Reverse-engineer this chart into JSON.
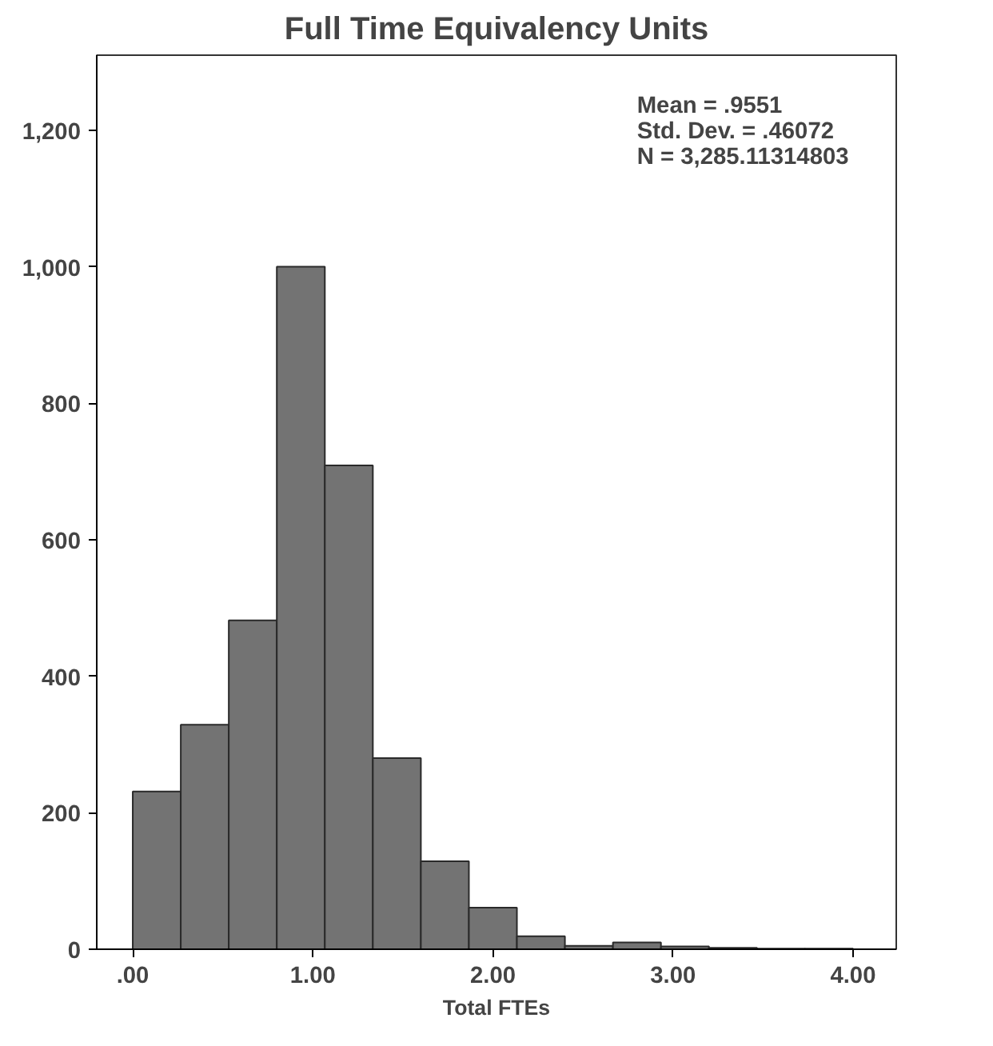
{
  "chart_data": {
    "type": "histogram",
    "title": "Full Time Equivalency Units",
    "xlabel": "Total FTEs",
    "bins": [
      0,
      0.2667,
      0.5333,
      0.8,
      1.0667,
      1.3333,
      1.6,
      1.8667,
      2.1333,
      2.4,
      2.6667,
      2.9333,
      3.2,
      3.4667,
      3.7333,
      4
    ],
    "values": [
      231,
      329,
      482,
      1000,
      709,
      280,
      129,
      61,
      19,
      5,
      10,
      4,
      2,
      1,
      1
    ],
    "color": "#737373",
    "xlim": [
      -0.2,
      4.24
    ],
    "ylim": [
      0,
      1310
    ],
    "xticks": [
      {
        "value": 0,
        "label": ".00"
      },
      {
        "value": 1,
        "label": "1.00"
      },
      {
        "value": 2,
        "label": "2.00"
      },
      {
        "value": 3,
        "label": "3.00"
      },
      {
        "value": 4,
        "label": "4.00"
      }
    ],
    "yticks": [
      0,
      200,
      400,
      600,
      800,
      {
        "value": 1000,
        "label": "1,000"
      },
      {
        "value": 1200,
        "label": "1,200"
      }
    ],
    "annotations": [
      "Mean = .9551",
      "Std. Dev. = .46072",
      "N = 3,285.11314803"
    ],
    "grid": false
  }
}
